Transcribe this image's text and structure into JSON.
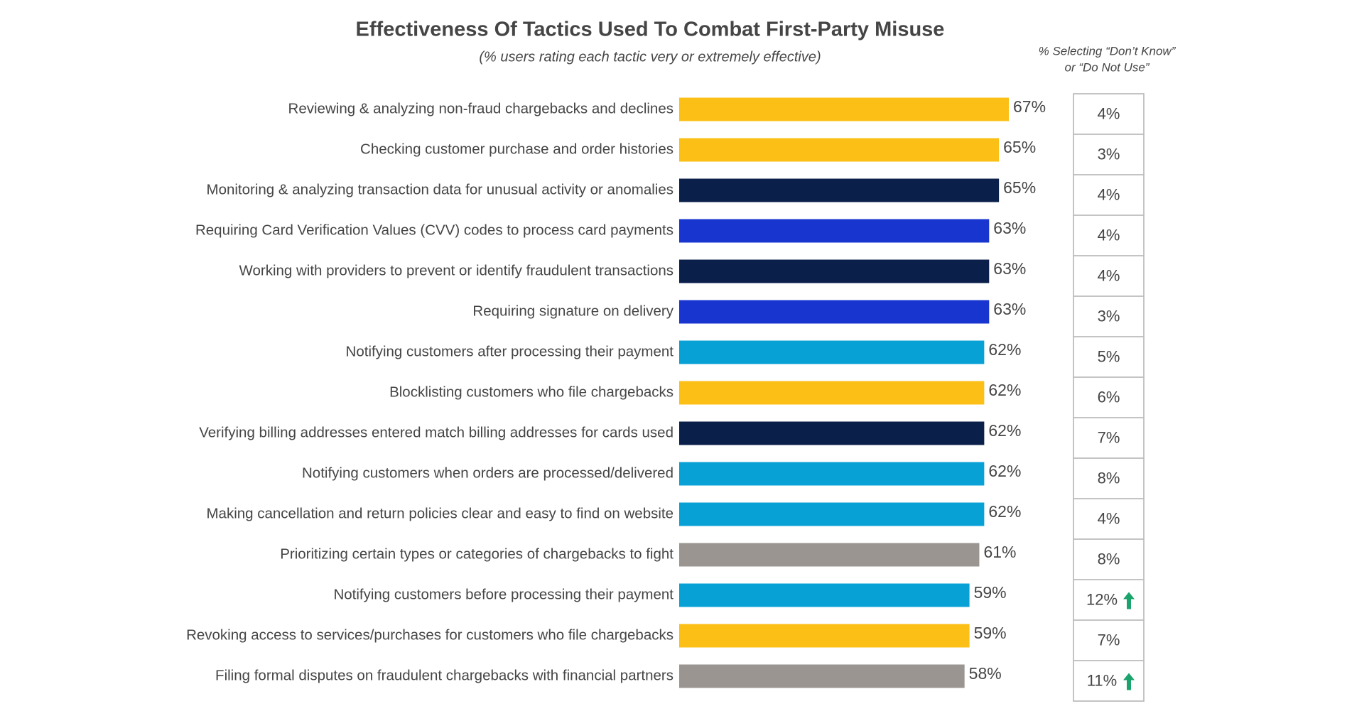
{
  "chart_data": {
    "type": "bar",
    "orientation": "horizontal",
    "title": "Effectiveness Of Tactics Used To Combat First-Party Misuse",
    "subtitle": "(% users rating each tactic very or extremely effective)",
    "categories": [
      "Reviewing & analyzing non-fraud chargebacks and declines",
      "Checking customer purchase and order histories",
      "Monitoring & analyzing transaction data for unusual activity or anomalies",
      "Requiring Card Verification Values (CVV) codes to process card payments",
      "Working with providers to prevent or identify fraudulent transactions",
      "Requiring signature on delivery",
      "Notifying customers after processing their payment",
      "Blocklisting customers who file chargebacks",
      "Verifying billing addresses entered match billing addresses for cards used",
      "Notifying customers when orders are processed/delivered",
      "Making cancellation and return policies clear and easy to find on website",
      "Prioritizing certain types or categories of chargebacks to fight",
      "Notifying customers before processing their payment",
      "Revoking access to services/purchases for customers who file chargebacks",
      "Filing formal disputes on fraudulent chargebacks with financial partners"
    ],
    "values": [
      67,
      65,
      65,
      63,
      63,
      63,
      62,
      62,
      62,
      62,
      62,
      61,
      59,
      59,
      58
    ],
    "value_labels": [
      "67%",
      "65%",
      "65%",
      "63%",
      "63%",
      "63%",
      "62%",
      "62%",
      "62%",
      "62%",
      "62%",
      "61%",
      "59%",
      "59%",
      "58%"
    ],
    "colors": [
      "#fbbf16",
      "#fbbf16",
      "#0b1f4b",
      "#1836cf",
      "#0b1f4b",
      "#1836cf",
      "#08a1d6",
      "#fbbf16",
      "#0b1f4b",
      "#08a1d6",
      "#08a1d6",
      "#9a9591",
      "#08a1d6",
      "#fbbf16",
      "#9a9591"
    ],
    "side_table": {
      "title_lines": [
        "% Selecting “Don’t Know”",
        "or “Do Not Use”"
      ],
      "values": [
        4,
        3,
        4,
        4,
        4,
        3,
        5,
        6,
        7,
        8,
        4,
        8,
        12,
        7,
        11
      ],
      "value_labels": [
        "4%",
        "3%",
        "4%",
        "4%",
        "4%",
        "3%",
        "5%",
        "6%",
        "7%",
        "8%",
        "4%",
        "8%",
        "12%",
        "7%",
        "11%"
      ],
      "trend": [
        null,
        null,
        null,
        null,
        null,
        null,
        null,
        null,
        null,
        null,
        null,
        null,
        "up",
        null,
        "up"
      ],
      "trend_color": "#1aa36b"
    }
  }
}
